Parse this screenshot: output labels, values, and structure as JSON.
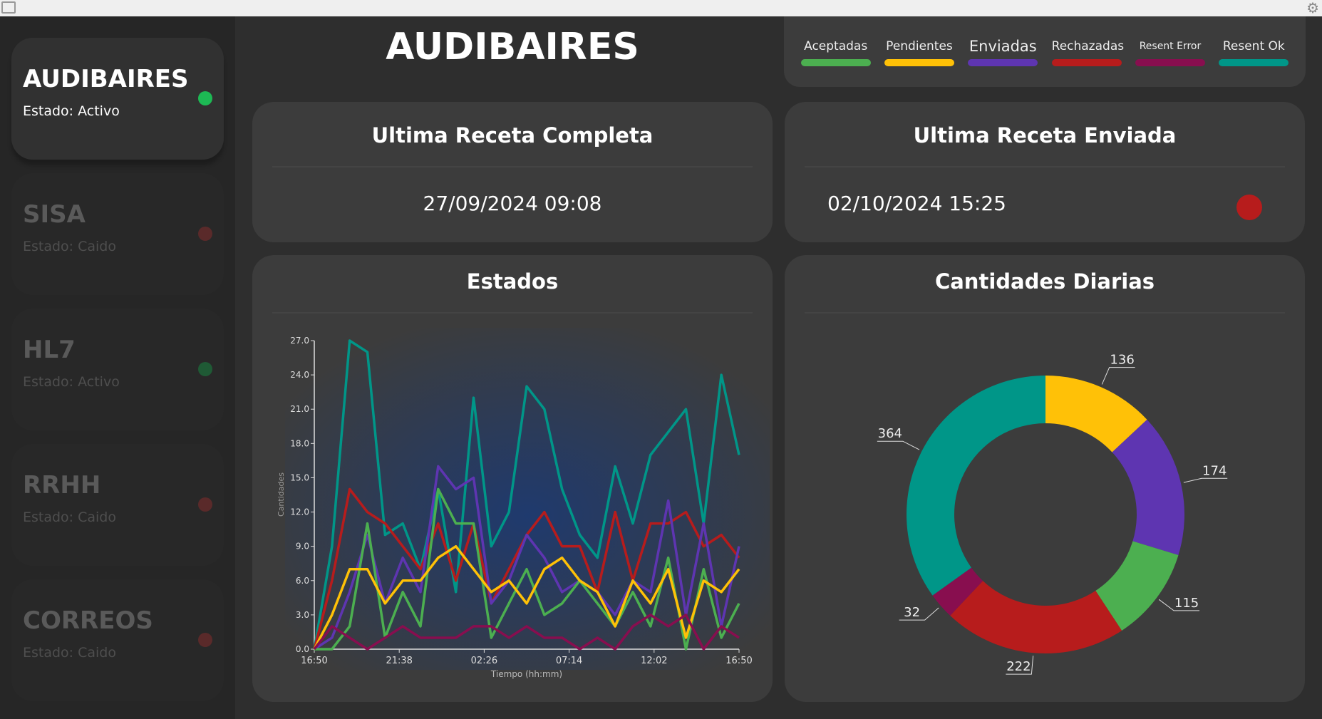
{
  "title": "AUDIBAIRES",
  "sidebar": {
    "items": [
      {
        "name": "AUDIBAIRES",
        "state": "Estado: Activo",
        "status_color": "#1db954",
        "active": true
      },
      {
        "name": "SISA",
        "state": "Estado: Caido",
        "status_color": "#5a2a2a",
        "active": false
      },
      {
        "name": "HL7",
        "state": "Estado: Activo",
        "status_color": "#1f5a35",
        "active": false
      },
      {
        "name": "RRHH",
        "state": "Estado: Caido",
        "status_color": "#5a2a2a",
        "active": false
      },
      {
        "name": "CORREOS",
        "state": "Estado: Caido",
        "status_color": "#5a2a2a",
        "active": false
      }
    ]
  },
  "legend": [
    {
      "label": "Aceptadas",
      "color": "#4caf50"
    },
    {
      "label": "Pendientes",
      "color": "#ffc107"
    },
    {
      "label": "Enviadas",
      "color": "#5e35b1"
    },
    {
      "label": "Rechazadas",
      "color": "#b71c1c"
    },
    {
      "label": "Resent Error",
      "color": "#880e4f"
    },
    {
      "label": "Resent Ok",
      "color": "#009688"
    }
  ],
  "cards": {
    "completa": {
      "title": "Ultima Receta Completa",
      "value": "27/09/2024 09:08"
    },
    "enviada": {
      "title": "Ultima Receta Enviada",
      "value": "02/10/2024 15:25",
      "status_color": "#b71c1c"
    },
    "estados": {
      "title": "Estados"
    },
    "diarias": {
      "title": "Cantidades Diarias"
    }
  },
  "chart_data": [
    {
      "type": "line",
      "title": "Estados",
      "xlabel": "Tiempo (hh:mm)",
      "ylabel": "Cantidades",
      "ylim": [
        0,
        27
      ],
      "yticks": [
        "0.0",
        "3.0",
        "6.0",
        "9.0",
        "12.0",
        "15.0",
        "18.0",
        "21.0",
        "24.0",
        "27.0"
      ],
      "xticks": [
        "16:50",
        "21:38",
        "02:26",
        "07:14",
        "12:02",
        "16:50"
      ],
      "series": [
        {
          "name": "Resent Ok",
          "color": "#009688",
          "values": [
            0,
            9,
            27,
            26,
            10,
            11,
            7,
            14,
            5,
            22,
            9,
            12,
            23,
            21,
            14,
            10,
            8,
            16,
            11,
            17,
            19,
            21,
            11,
            24,
            17
          ]
        },
        {
          "name": "Rechazadas",
          "color": "#b71c1c",
          "values": [
            0,
            6,
            14,
            12,
            11,
            9,
            7,
            11,
            6,
            11,
            4,
            7,
            10,
            12,
            9,
            9,
            5,
            12,
            6,
            11,
            11,
            12,
            9,
            10,
            8
          ]
        },
        {
          "name": "Enviadas",
          "color": "#5e35b1",
          "values": [
            0,
            1,
            5,
            10,
            4,
            8,
            5,
            16,
            14,
            15,
            4,
            6,
            10,
            8,
            5,
            6,
            5,
            3,
            6,
            5,
            13,
            3,
            11,
            2,
            9
          ]
        },
        {
          "name": "Aceptadas",
          "color": "#4caf50",
          "values": [
            0,
            0,
            2,
            11,
            1,
            5,
            2,
            14,
            11,
            11,
            1,
            4,
            7,
            3,
            4,
            6,
            4,
            2,
            5,
            2,
            8,
            0,
            7,
            1,
            4
          ]
        },
        {
          "name": "Pendientes",
          "color": "#ffc107",
          "values": [
            0,
            3,
            7,
            7,
            4,
            6,
            6,
            8,
            9,
            7,
            5,
            6,
            4,
            7,
            8,
            6,
            5,
            2,
            6,
            4,
            7,
            1,
            6,
            5,
            7
          ]
        },
        {
          "name": "Resent Error",
          "color": "#880e4f",
          "values": [
            0,
            2,
            1,
            0,
            1,
            2,
            1,
            1,
            1,
            2,
            2,
            1,
            2,
            1,
            1,
            0,
            1,
            0,
            2,
            3,
            2,
            3,
            0,
            2,
            1
          ]
        }
      ]
    },
    {
      "type": "pie",
      "title": "Cantidades Diarias",
      "donut": true,
      "slices": [
        {
          "name": "Pendientes",
          "value": 136,
          "color": "#ffc107"
        },
        {
          "name": "Enviadas",
          "value": 174,
          "color": "#5e35b1"
        },
        {
          "name": "Aceptadas",
          "value": 115,
          "color": "#4caf50"
        },
        {
          "name": "Rechazadas",
          "value": 222,
          "color": "#b71c1c"
        },
        {
          "name": "Resent Error",
          "value": 32,
          "color": "#880e4f"
        },
        {
          "name": "Resent Ok",
          "value": 364,
          "color": "#009688"
        }
      ]
    }
  ]
}
